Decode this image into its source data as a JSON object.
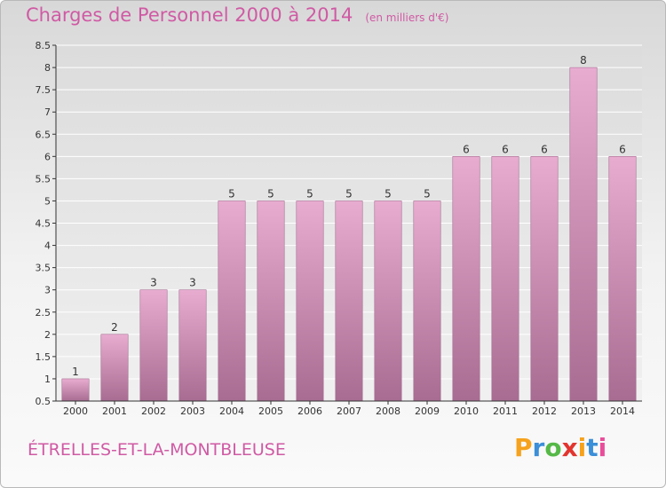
{
  "title": "Charges de Personnel 2000 à 2014",
  "subtitle": "(en milliers d'€)",
  "commune": "ÉTRELLES-ET-LA-MONTBLEUSE",
  "logo": {
    "letters": [
      "P",
      "r",
      "o",
      "x",
      "i",
      "t",
      "i"
    ],
    "colors": [
      "#f6a21c",
      "#3b8fd8",
      "#55b947",
      "#e2352e",
      "#f6a21c",
      "#3b8fd8",
      "#e94c9a"
    ]
  },
  "chart_data": {
    "type": "bar",
    "categories": [
      "2000",
      "2001",
      "2002",
      "2003",
      "2004",
      "2005",
      "2006",
      "2007",
      "2008",
      "2009",
      "2010",
      "2011",
      "2012",
      "2013",
      "2014"
    ],
    "values": [
      1,
      2,
      3,
      3,
      5,
      5,
      5,
      5,
      5,
      5,
      6,
      6,
      6,
      8,
      6
    ],
    "ylim": [
      0.5,
      8.5
    ],
    "yticks": [
      0.5,
      1,
      1.5,
      2,
      2.5,
      3,
      3.5,
      4,
      4.5,
      5,
      5.5,
      6,
      6.5,
      7,
      7.5,
      8,
      8.5
    ],
    "ytick_labels": [
      "0.5",
      "1",
      "1.5",
      "2",
      "2.5",
      "3",
      "3.5",
      "4",
      "4.5",
      "5",
      "5.5",
      "6",
      "6.5",
      "7",
      "7.5",
      "8",
      "8.5"
    ],
    "grid": true,
    "bar_color": "#e3a6cb",
    "title": "Charges de Personnel 2000 à 2014",
    "xlabel": "",
    "ylabel": ""
  }
}
